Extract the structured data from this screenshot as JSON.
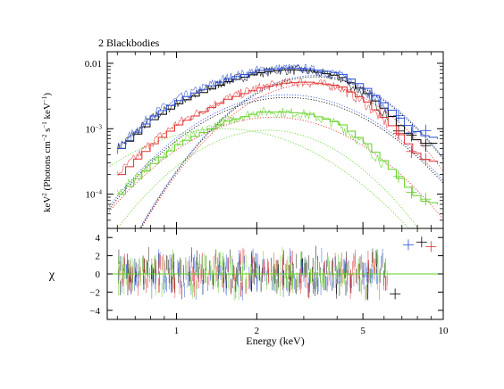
{
  "chart_data": [
    {
      "type": "line",
      "title": "2 Blackbodies",
      "xlabel": "",
      "ylabel_main": "keV",
      "ylabel_sup1": "2",
      "ylabel_units": " (Photons cm",
      "ylabel_sup2": "−2",
      "ylabel_mid": " s",
      "ylabel_sup3": "−1",
      "ylabel_end": " keV",
      "ylabel_sup4": "−1",
      "ylabel_close": ")",
      "x_scale": "log",
      "y_scale": "log",
      "xlim": [
        0.55,
        10
      ],
      "ylim": [
        3e-05,
        0.015
      ],
      "ytick_labels": [
        {
          "value": 0.01,
          "mant": "0.01",
          "exp": ""
        },
        {
          "value": 0.001,
          "mant": "10",
          "exp": "−3"
        },
        {
          "value": 0.0001,
          "mant": "10",
          "exp": "−4"
        }
      ],
      "series": [
        {
          "color": "#000000",
          "kind": "data+total-model",
          "x": [
            0.6,
            0.8,
            1.0,
            1.5,
            2.0,
            2.5,
            3.0,
            4.0,
            5.0,
            6.0,
            7.0,
            8.0,
            9.5
          ],
          "y": [
            0.0005,
            0.0014,
            0.0025,
            0.0052,
            0.0072,
            0.008,
            0.0078,
            0.0063,
            0.0035,
            0.0018,
            0.0009,
            0.0006,
            0.0006
          ]
        },
        {
          "color": "#2a4fd6",
          "kind": "data+total-model",
          "x": [
            0.6,
            0.8,
            1.0,
            1.5,
            2.0,
            2.5,
            3.0,
            4.0,
            5.0,
            6.0,
            7.0,
            8.0,
            9.5
          ],
          "y": [
            0.0005,
            0.0016,
            0.0028,
            0.0058,
            0.0078,
            0.0085,
            0.0083,
            0.007,
            0.0042,
            0.0022,
            0.0012,
            0.0008,
            0.0007
          ]
        },
        {
          "color": "#e03030",
          "kind": "data+total-model",
          "x": [
            0.6,
            0.8,
            1.0,
            1.5,
            2.0,
            2.5,
            3.0,
            4.0,
            5.0,
            6.0,
            7.0,
            8.0,
            9.5
          ],
          "y": [
            0.0002,
            0.0006,
            0.0012,
            0.0028,
            0.0042,
            0.005,
            0.0052,
            0.0045,
            0.0026,
            0.0013,
            0.00065,
            0.00035,
            0.0003
          ]
        },
        {
          "color": "#60d020",
          "kind": "data+total-model",
          "x": [
            0.6,
            0.8,
            1.0,
            1.5,
            2.0,
            2.5,
            3.0,
            4.0,
            5.0,
            6.0,
            7.0,
            8.0,
            9.5
          ],
          "y": [
            0.0001,
            0.0003,
            0.0006,
            0.0013,
            0.0018,
            0.0018,
            0.0017,
            0.0012,
            0.0006,
            0.00028,
            0.00014,
            8e-05,
            7e-05
          ]
        }
      ],
      "components": [
        {
          "color": "#60d020",
          "peak_x": 1.5,
          "peak_y": 0.001,
          "width": 0.55
        },
        {
          "color": "#60d020",
          "peak_x": 2.2,
          "peak_y": 0.00095,
          "width": 0.45
        },
        {
          "color": "#e03030",
          "peak_x": 2.3,
          "peak_y": 0.0015,
          "width": 0.5
        },
        {
          "color": "#e03030",
          "peak_x": 3.2,
          "peak_y": 0.0048,
          "width": 0.42
        },
        {
          "color": "#2a4fd6",
          "peak_x": 2.6,
          "peak_y": 0.0033,
          "width": 0.5
        },
        {
          "color": "#2a4fd6",
          "peak_x": 3.3,
          "peak_y": 0.0065,
          "width": 0.42
        },
        {
          "color": "#000000",
          "peak_x": 2.6,
          "peak_y": 0.003,
          "width": 0.5
        },
        {
          "color": "#000000",
          "peak_x": 3.3,
          "peak_y": 0.0062,
          "width": 0.42
        }
      ]
    },
    {
      "type": "scatter",
      "xlabel": "Energy (keV)",
      "ylabel": "χ",
      "x_scale": "log",
      "xlim": [
        0.55,
        10
      ],
      "ylim": [
        -5,
        5
      ],
      "xtick_labels": [
        {
          "value": 1,
          "label": "1"
        },
        {
          "value": 2,
          "label": "2"
        },
        {
          "value": 5,
          "label": "5"
        },
        {
          "value": 10,
          "label": "10"
        }
      ],
      "ytick_labels": [
        {
          "value": 4,
          "label": "4"
        },
        {
          "value": 2,
          "label": "2"
        },
        {
          "value": 0,
          "label": "0"
        },
        {
          "value": -2,
          "label": "−2"
        },
        {
          "value": -4,
          "label": "−4"
        }
      ],
      "series_colors": [
        "#000000",
        "#2a4fd6",
        "#e03030",
        "#60d020"
      ],
      "residual_spread": 2.3,
      "baseline_color": "#60d020"
    }
  ]
}
